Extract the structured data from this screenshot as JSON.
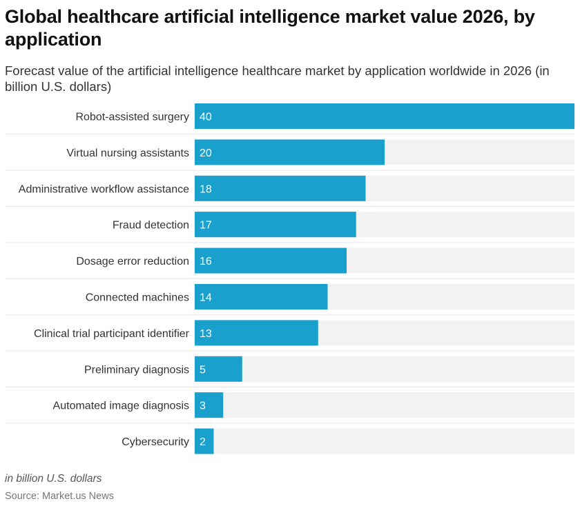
{
  "header": {
    "title": "Global healthcare artificial intelligence market value 2026, by application",
    "subtitle": "Forecast value of the artificial intelligence healthcare market by application worldwide in 2026 (in billion U.S. dollars)"
  },
  "footer": {
    "unit_note": "in billion U.S. dollars",
    "source": "Source: Market.us News"
  },
  "colors": {
    "bar": "#1aa0cc",
    "track": "#f2f2f2",
    "label": "#333333",
    "value_label": "#ffffff",
    "gridline": "#d0d0d0"
  },
  "chart_data": {
    "type": "bar",
    "orientation": "horizontal",
    "title": "Global healthcare artificial intelligence market value 2026, by application",
    "subtitle": "Forecast value of the artificial intelligence healthcare market by application worldwide in 2026 (in billion U.S. dollars)",
    "xlabel": "",
    "ylabel": "",
    "unit": "billion U.S. dollars",
    "xlim": [
      0,
      40
    ],
    "grid": false,
    "legend": "none",
    "categories": [
      "Robot-assisted surgery",
      "Virtual nursing assistants",
      "Administrative workflow assistance",
      "Fraud detection",
      "Dosage error reduction",
      "Connected machines",
      "Clinical trial participant identifier",
      "Preliminary diagnosis",
      "Automated image diagnosis",
      "Cybersecurity"
    ],
    "values": [
      40,
      20,
      18,
      17,
      16,
      14,
      13,
      5,
      3,
      2
    ]
  }
}
